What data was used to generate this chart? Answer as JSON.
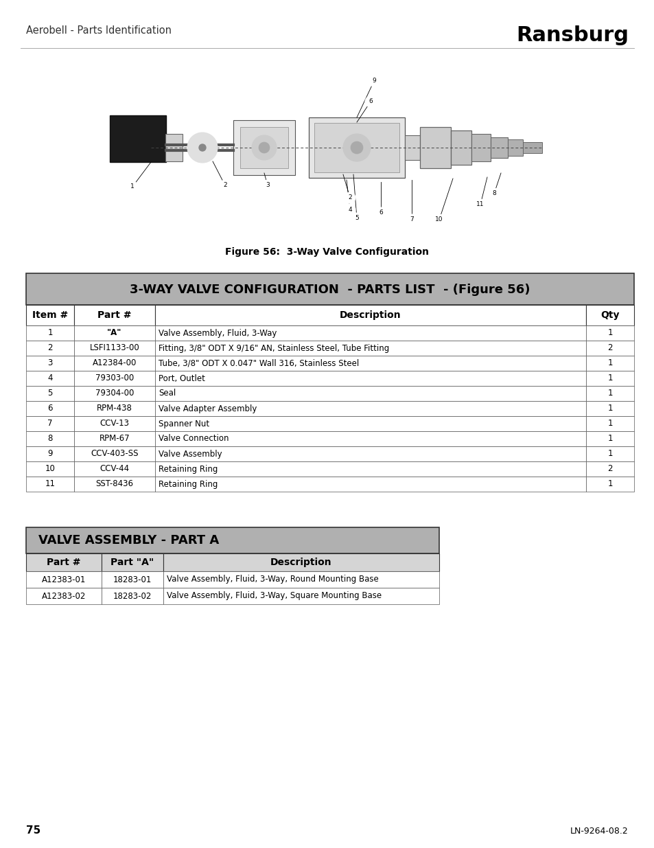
{
  "page_title": "Aerobell - Parts Identification",
  "brand": "Ransburg",
  "figure_caption": "Figure 56:  3-Way Valve Configuration",
  "page_number": "75",
  "doc_number": "LN-9264-08.2",
  "table1_title": "3-WAY VALVE CONFIGURATION  - PARTS LIST  - (Figure 56)",
  "table1_headers": [
    "Item #",
    "Part #",
    "Description",
    "Qty"
  ],
  "table1_rows": [
    [
      "1",
      "\"A\"",
      "Valve Assembly, Fluid, 3-Way",
      "1"
    ],
    [
      "2",
      "LSFI1133-00",
      "Fitting, 3/8\" ODT X 9/16\" AN, Stainless Steel, Tube Fitting",
      "2"
    ],
    [
      "3",
      "A12384-00",
      "Tube, 3/8\" ODT X 0.047\" Wall 316, Stainless Steel",
      "1"
    ],
    [
      "4",
      "79303-00",
      "Port, Outlet",
      "1"
    ],
    [
      "5",
      "79304-00",
      "Seal",
      "1"
    ],
    [
      "6",
      "RPM-438",
      "Valve Adapter Assembly",
      "1"
    ],
    [
      "7",
      "CCV-13",
      "Spanner Nut",
      "1"
    ],
    [
      "8",
      "RPM-67",
      "Valve Connection",
      "1"
    ],
    [
      "9",
      "CCV-403-SS",
      "Valve Assembly",
      "1"
    ],
    [
      "10",
      "CCV-44",
      "Retaining Ring",
      "2"
    ],
    [
      "11",
      "SST-8436",
      "Retaining Ring",
      "1"
    ]
  ],
  "table2_title": "VALVE ASSEMBLY - PART A",
  "table2_headers": [
    "Part #",
    "Part \"A\"",
    "Description"
  ],
  "table2_rows": [
    [
      "A12383-01",
      "18283-01",
      "Valve Assembly, Fluid, 3-Way, Round Mounting Base"
    ],
    [
      "A12383-02",
      "18283-02",
      "Valve Assembly, Fluid, 3-Way, Square Mounting Base"
    ]
  ]
}
